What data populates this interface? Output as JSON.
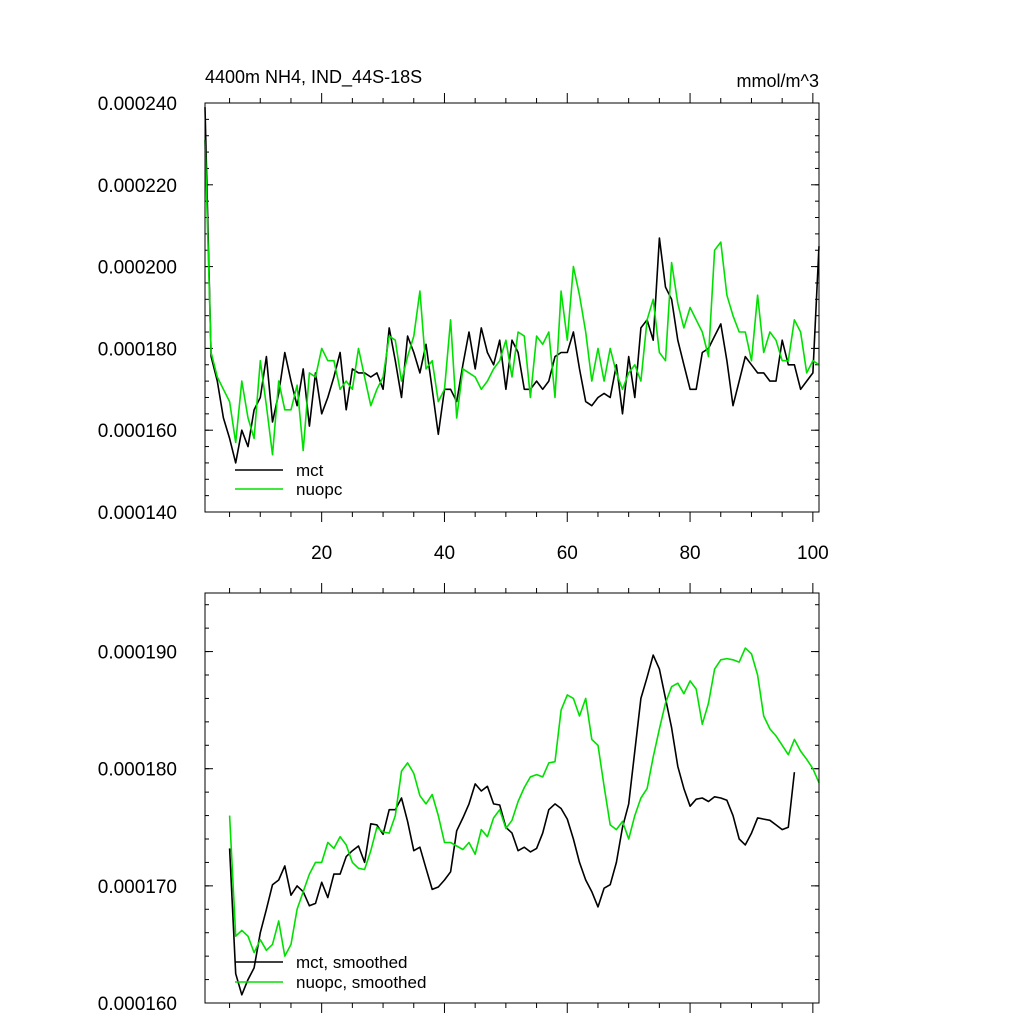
{
  "chart_data": [
    {
      "type": "line",
      "title": "4400m NH4, IND_44S-18S",
      "units": "mmol/m^3",
      "xlabel": "",
      "ylabel": "",
      "xlim": [
        1,
        101
      ],
      "ylim": [
        0.00014,
        0.00024
      ],
      "x_ticks": [
        20,
        40,
        60,
        80,
        100
      ],
      "y_ticks": [
        "0.000140",
        "0.000160",
        "0.000180",
        "0.000200",
        "0.000220",
        "0.000240"
      ],
      "legend": "bottom-left",
      "series": [
        {
          "name": "mct",
          "color": "#000000",
          "x_start": 1,
          "values": [
            0.000239,
            0.000178,
            0.000172,
            0.000163,
            0.000158,
            0.000152,
            0.00016,
            0.000156,
            0.000165,
            0.000168,
            0.000178,
            0.000162,
            0.000169,
            0.000179,
            0.000172,
            0.000166,
            0.000175,
            0.000161,
            0.000174,
            0.000164,
            0.000168,
            0.000173,
            0.000179,
            0.000165,
            0.000175,
            0.000174,
            0.000174,
            0.000173,
            0.000174,
            0.00017,
            0.000185,
            0.000177,
            0.000168,
            0.000183,
            0.000179,
            0.000174,
            0.000181,
            0.00017,
            0.000159,
            0.00017,
            0.00017,
            0.000167,
            0.000176,
            0.000184,
            0.000175,
            0.000185,
            0.000179,
            0.000176,
            0.000182,
            0.00017,
            0.000182,
            0.000179,
            0.00017,
            0.00017,
            0.000172,
            0.00017,
            0.000172,
            0.000178,
            0.000179,
            0.000179,
            0.000184,
            0.000175,
            0.000167,
            0.000166,
            0.000168,
            0.000169,
            0.000168,
            0.000176,
            0.000164,
            0.000178,
            0.000168,
            0.000185,
            0.000187,
            0.000182,
            0.000207,
            0.000195,
            0.000192,
            0.000182,
            0.000176,
            0.00017,
            0.00017,
            0.000179,
            0.00018,
            0.000183,
            0.000186,
            0.000177,
            0.000166,
            0.000172,
            0.000178,
            0.000176,
            0.000174,
            0.000174,
            0.000172,
            0.000172,
            0.000182,
            0.000176,
            0.000176,
            0.00017,
            0.000172,
            0.000174,
            0.000205
          ]
        },
        {
          "name": "nuopc",
          "color": "#00e000",
          "x_start": 1,
          "values": [
            0.000231,
            0.000179,
            0.000173,
            0.00017,
            0.000167,
            0.000157,
            0.000172,
            0.000163,
            0.000158,
            0.000177,
            0.000166,
            0.000154,
            0.000172,
            0.000165,
            0.000165,
            0.000171,
            0.000155,
            0.000174,
            0.000173,
            0.00018,
            0.000177,
            0.000177,
            0.00017,
            0.000172,
            0.00017,
            0.00018,
            0.000173,
            0.000166,
            0.00017,
            0.000173,
            0.000183,
            0.000182,
            0.000172,
            0.000178,
            0.000183,
            0.000194,
            0.000175,
            0.000177,
            0.000167,
            0.00017,
            0.000187,
            0.000163,
            0.000175,
            0.000174,
            0.000173,
            0.00017,
            0.000172,
            0.000175,
            0.000177,
            0.000182,
            0.000173,
            0.000184,
            0.000183,
            0.000168,
            0.000183,
            0.000181,
            0.000184,
            0.000168,
            0.000194,
            0.000182,
            0.0002,
            0.000193,
            0.000184,
            0.000172,
            0.00018,
            0.000172,
            0.00018,
            0.000174,
            0.00017,
            0.000174,
            0.000176,
            0.000172,
            0.000187,
            0.000192,
            0.000179,
            0.000177,
            0.000201,
            0.000191,
            0.000185,
            0.00019,
            0.000187,
            0.000184,
            0.000178,
            0.000204,
            0.000206,
            0.000193,
            0.000188,
            0.000184,
            0.000184,
            0.000177,
            0.000193,
            0.000179,
            0.000184,
            0.000182,
            0.000177,
            0.000177,
            0.000187,
            0.000184,
            0.000174,
            0.000177,
            0.000176
          ]
        }
      ]
    },
    {
      "type": "line",
      "title": "",
      "xlabel": "",
      "ylabel": "",
      "xlim": [
        1,
        101
      ],
      "ylim": [
        0.00016,
        0.000195
      ],
      "y_ticks": [
        "0.000160",
        "0.000170",
        "0.000180",
        "0.000190"
      ],
      "legend": "bottom-left",
      "series": [
        {
          "name": "mct, smoothed",
          "color": "#000000",
          "x_start": 5,
          "values": [
            0.0001732,
            0.0001625,
            0.0001607,
            0.000162,
            0.000163,
            0.000166,
            0.000168,
            0.0001701,
            0.0001705,
            0.0001717,
            0.0001692,
            0.00017,
            0.0001695,
            0.0001683,
            0.0001685,
            0.0001703,
            0.000169,
            0.000171,
            0.000171,
            0.0001725,
            0.000173,
            0.0001734,
            0.000172,
            0.0001753,
            0.0001752,
            0.0001744,
            0.0001765,
            0.0001765,
            0.0001775,
            0.0001755,
            0.000173,
            0.0001733,
            0.0001715,
            0.0001697,
            0.0001699,
            0.0001705,
            0.0001712,
            0.0001747,
            0.0001758,
            0.000177,
            0.0001787,
            0.0001781,
            0.0001785,
            0.000177,
            0.0001769,
            0.000175,
            0.0001745,
            0.000173,
            0.0001733,
            0.0001729,
            0.0001732,
            0.0001745,
            0.0001765,
            0.000177,
            0.0001766,
            0.0001757,
            0.000174,
            0.000172,
            0.0001705,
            0.0001695,
            0.0001682,
            0.0001698,
            0.0001701,
            0.000172,
            0.000175,
            0.000177,
            0.0001815,
            0.000186,
            0.0001878,
            0.0001897,
            0.0001885,
            0.000186,
            0.0001835,
            0.0001802,
            0.0001783,
            0.0001768,
            0.0001774,
            0.0001775,
            0.0001772,
            0.0001776,
            0.0001775,
            0.0001773,
            0.000176,
            0.000174,
            0.0001735,
            0.0001745,
            0.0001758,
            0.0001757,
            0.0001756,
            0.0001752,
            0.0001748,
            0.000175,
            0.0001797
          ]
        },
        {
          "name": "nuopc, smoothed",
          "color": "#00e000",
          "x_start": 5,
          "values": [
            0.000176,
            0.0001657,
            0.0001662,
            0.0001657,
            0.0001643,
            0.0001654,
            0.0001645,
            0.000165,
            0.000167,
            0.000164,
            0.000165,
            0.000168,
            0.0001695,
            0.000171,
            0.000172,
            0.000172,
            0.0001737,
            0.0001732,
            0.0001742,
            0.0001735,
            0.000172,
            0.0001715,
            0.0001714,
            0.000173,
            0.000175,
            0.0001746,
            0.0001745,
            0.000176,
            0.0001798,
            0.0001805,
            0.0001796,
            0.0001777,
            0.000177,
            0.0001778,
            0.000176,
            0.0001737,
            0.0001737,
            0.0001734,
            0.0001731,
            0.0001737,
            0.0001727,
            0.0001748,
            0.0001742,
            0.0001758,
            0.0001765,
            0.0001749,
            0.0001756,
            0.0001772,
            0.0001784,
            0.0001793,
            0.0001795,
            0.0001793,
            0.0001805,
            0.0001806,
            0.000185,
            0.0001863,
            0.000186,
            0.0001845,
            0.000186,
            0.0001825,
            0.000182,
            0.0001785,
            0.0001752,
            0.0001748,
            0.0001755,
            0.000174,
            0.000176,
            0.0001775,
            0.0001783,
            0.000181,
            0.0001834,
            0.0001856,
            0.000187,
            0.0001873,
            0.0001864,
            0.0001875,
            0.0001868,
            0.0001838,
            0.0001856,
            0.0001885,
            0.0001893,
            0.0001894,
            0.0001893,
            0.0001891,
            0.0001903,
            0.0001898,
            0.000188,
            0.0001845,
            0.0001834,
            0.0001828,
            0.000182,
            0.0001812,
            0.0001825,
            0.0001815,
            0.0001808,
            0.00018,
            0.0001788
          ]
        }
      ]
    }
  ]
}
